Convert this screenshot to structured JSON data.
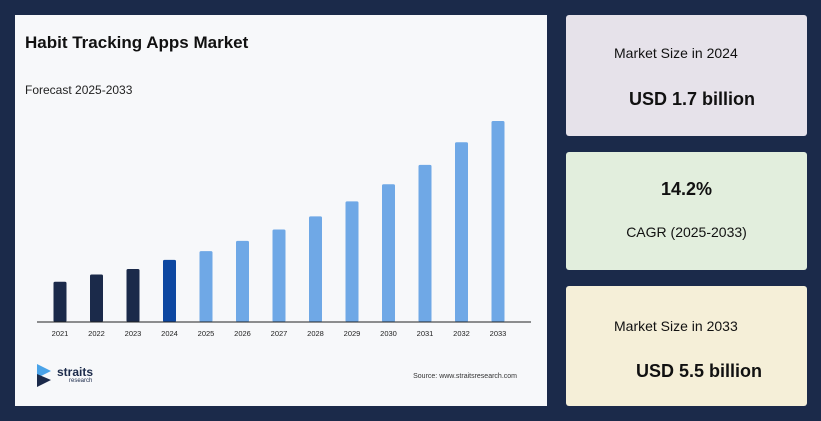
{
  "chart": {
    "title": "Habit Tracking Apps Market",
    "subtitle": "Forecast 2025-2033",
    "source": "Source: www.straitsresearch.com"
  },
  "logo": {
    "name": "straits",
    "sub": "research"
  },
  "cards": {
    "size_2024_label": "Market Size in 2024",
    "size_2024_value": "USD 1.7 billion",
    "cagr_value": "14.2%",
    "cagr_label": "CAGR (2025-2033)",
    "size_2033_label": "Market Size in 2033",
    "size_2033_value": "USD 5.5 billion"
  },
  "colors": {
    "historical": "#1b2a4a",
    "base_year": "#0d47a1",
    "forecast": "#6fa8e6",
    "background": "#1b2a4a"
  },
  "chart_data": {
    "type": "bar",
    "title": "Habit Tracking Apps Market",
    "subtitle": "Forecast 2025-2033",
    "categories": [
      "2021",
      "2022",
      "2023",
      "2024",
      "2025",
      "2026",
      "2027",
      "2028",
      "2029",
      "2030",
      "2031",
      "2032",
      "2033"
    ],
    "values": [
      1.1,
      1.3,
      1.45,
      1.7,
      1.94,
      2.22,
      2.53,
      2.89,
      3.3,
      3.77,
      4.3,
      4.92,
      5.5
    ],
    "bar_groups": [
      "historical",
      "historical",
      "historical",
      "base",
      "forecast",
      "forecast",
      "forecast",
      "forecast",
      "forecast",
      "forecast",
      "forecast",
      "forecast",
      "forecast"
    ],
    "ylim": [
      0,
      5.5
    ],
    "grid": false,
    "legend": "none"
  }
}
